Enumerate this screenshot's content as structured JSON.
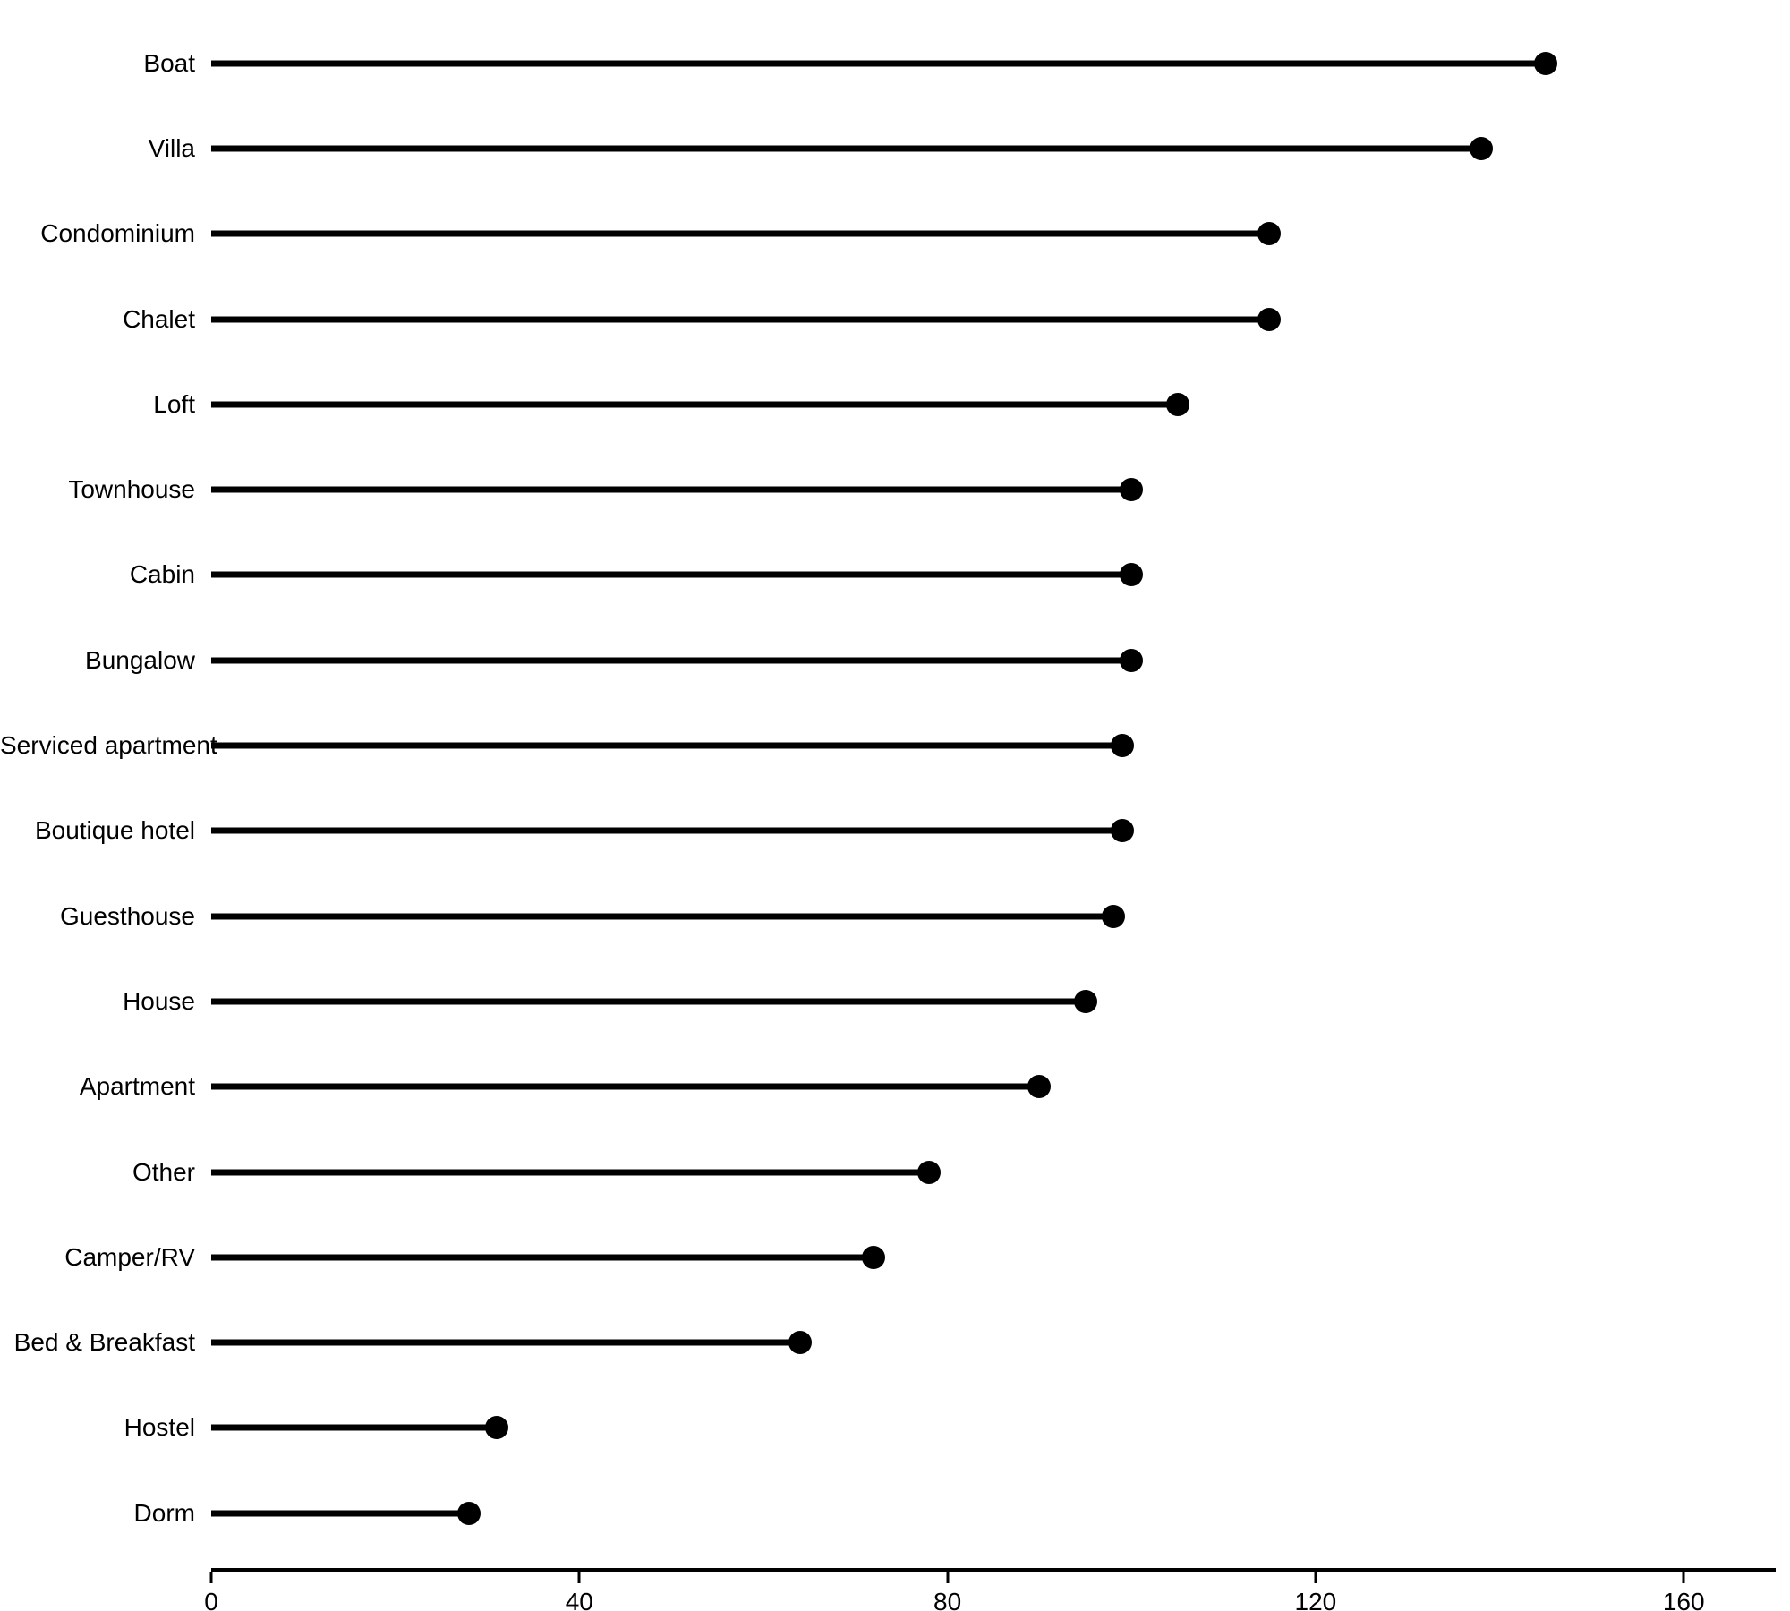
{
  "chart_data": {
    "type": "bar",
    "style": "lollipop",
    "orientation": "horizontal",
    "title": "",
    "xlabel": "",
    "ylabel": "",
    "categories": [
      "Boat",
      "Villa",
      "Condominium",
      "Chalet",
      "Loft",
      "Townhouse",
      "Cabin",
      "Bungalow",
      "Serviced apartment",
      "Boutique hotel",
      "Guesthouse",
      "House",
      "Apartment",
      "Other",
      "Camper/RV",
      "Bed & Breakfast",
      "Hostel",
      "Dorm"
    ],
    "values": [
      145,
      138,
      115,
      115,
      105,
      100,
      100,
      100,
      99,
      99,
      98,
      95,
      90,
      78,
      72,
      64,
      31,
      28
    ],
    "xlim": [
      0,
      170
    ],
    "xticks": [
      0,
      40,
      80,
      120,
      160
    ],
    "grid": false,
    "legend": false,
    "colors": {
      "stem": "#000000",
      "dot": "#000000",
      "axis": "#000000",
      "text": "#000000",
      "background": "#ffffff"
    }
  }
}
